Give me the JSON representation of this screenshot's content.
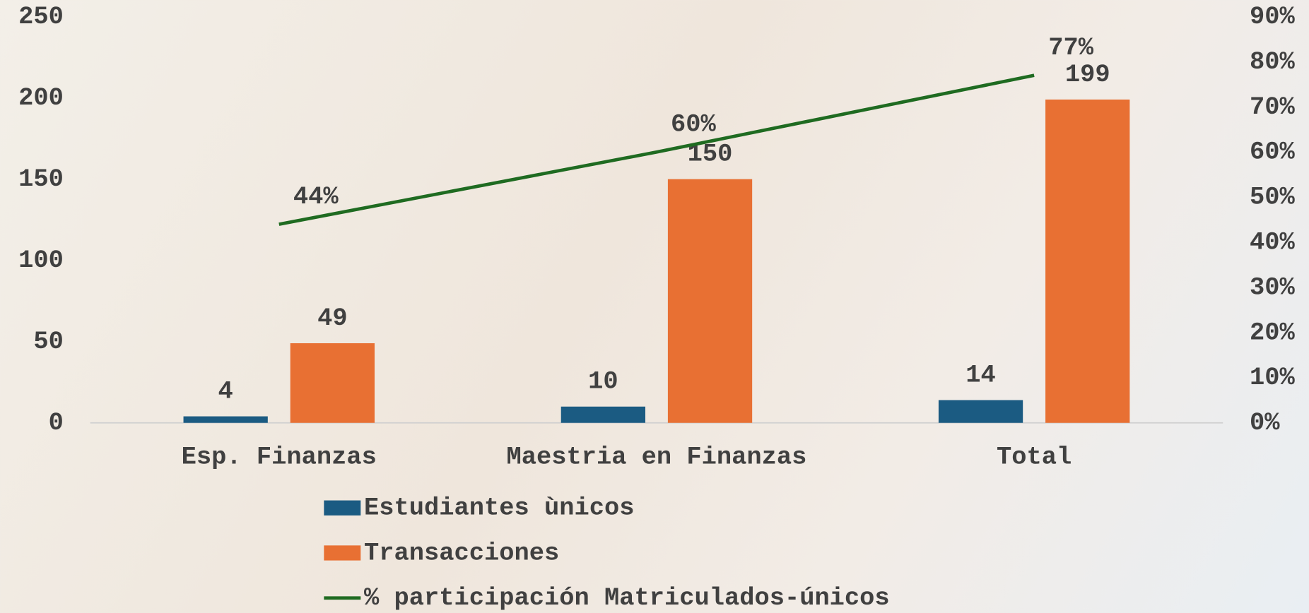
{
  "chart_data": {
    "type": "bar-line",
    "categories": [
      "Esp. Finanzas",
      "Maestria en Finanzas",
      "Total"
    ],
    "series": [
      {
        "name": "Estudiantes ùnicos",
        "type": "bar",
        "color": "#1b5b82",
        "values": [
          4,
          10,
          14
        ]
      },
      {
        "name": "Transacciones",
        "type": "bar",
        "color": "#e87033",
        "values": [
          49,
          150,
          199
        ]
      },
      {
        "name": "% participación Matriculados-únicos",
        "type": "line",
        "axis": "y2",
        "color": "#1f6b21",
        "values": [
          44,
          60,
          77
        ],
        "value_labels": [
          "44%",
          "60%",
          "77%"
        ]
      }
    ],
    "ylim": [
      0,
      250
    ],
    "yticks": [
      0,
      50,
      100,
      150,
      200,
      250
    ],
    "y2lim": [
      0,
      90
    ],
    "y2ticks": [
      {
        "value": 0,
        "label": "0%"
      },
      {
        "value": 10,
        "label": "10%"
      },
      {
        "value": 20,
        "label": "20%"
      },
      {
        "value": 30,
        "label": "30%"
      },
      {
        "value": 40,
        "label": "40%"
      },
      {
        "value": 50,
        "label": "50%"
      },
      {
        "value": 60,
        "label": "60%"
      },
      {
        "value": 70,
        "label": "70%"
      },
      {
        "value": 80,
        "label": "80%"
      },
      {
        "value": 90,
        "label": "90%"
      }
    ],
    "grid": false,
    "legend": "bottom"
  }
}
